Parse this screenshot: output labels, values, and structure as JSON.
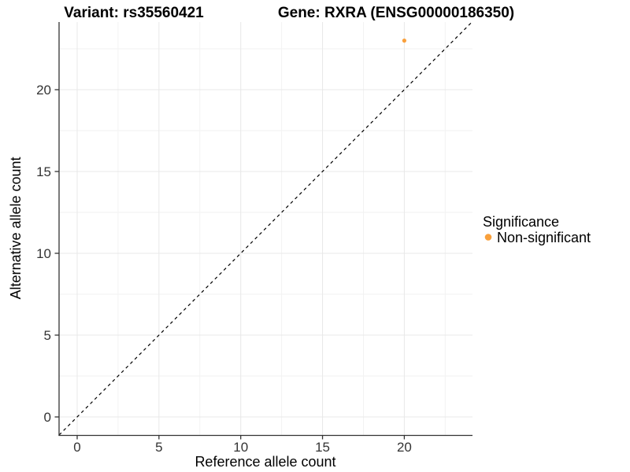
{
  "titles": {
    "variant": "Variant: rs35560421",
    "gene": "Gene: RXRA (ENSG00000186350)"
  },
  "axes": {
    "x_label": "Reference allele count",
    "y_label": "Alternative allele count",
    "x_ticks": [
      0,
      5,
      10,
      15,
      20
    ],
    "y_ticks": [
      0,
      5,
      10,
      15,
      20
    ]
  },
  "legend": {
    "title": "Significance",
    "items": [
      {
        "label": "Non-significant",
        "color": "#F9A03C"
      }
    ]
  },
  "colors": {
    "point": "#F9A03C",
    "grid_major": "#E8E8E8",
    "grid_minor": "#F2F2F2",
    "axis": "#333333",
    "reference_line": "#000000",
    "background": "#FFFFFF"
  },
  "chart_data": {
    "type": "scatter",
    "title": "Variant: rs35560421 / Gene: RXRA (ENSG00000186350)",
    "xlabel": "Reference allele count",
    "ylabel": "Alternative allele count",
    "xlim": [
      -1.1,
      24.2
    ],
    "ylim": [
      -1.1,
      24.2
    ],
    "x_ticks": [
      0,
      5,
      10,
      15,
      20
    ],
    "y_ticks": [
      0,
      5,
      10,
      15,
      20
    ],
    "minor_ticks": [
      2.5,
      7.5,
      12.5,
      17.5,
      22.5
    ],
    "grid": "on",
    "legend_position": "right",
    "series": [
      {
        "name": "Non-significant",
        "color": "#F9A03C",
        "points": [
          {
            "x": 20,
            "y": 23
          }
        ]
      }
    ],
    "reference_line": {
      "type": "identity",
      "style": "dashed",
      "color": "#000000"
    }
  }
}
